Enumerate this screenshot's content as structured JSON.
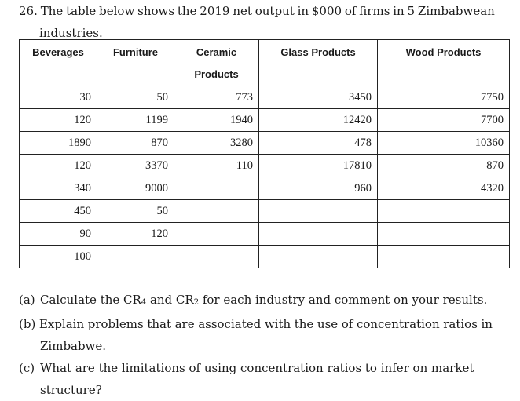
{
  "question": {
    "number": "26.",
    "intro_line1_words": [
      "The",
      "table",
      "below",
      "shows",
      "the",
      "2019",
      "net",
      "output",
      "in",
      "$000",
      "of",
      "firms",
      "in",
      "5",
      "Zimbabwean"
    ],
    "intro_line2": "industries."
  },
  "table": {
    "headers": [
      "Beverages",
      "Furniture",
      "Ceramic Products",
      "Glass Products",
      "Wood Products"
    ],
    "ceramic_line1": "Ceramic",
    "ceramic_line2": "Products",
    "rows": [
      [
        "30",
        "50",
        "773",
        "3450",
        "7750"
      ],
      [
        "120",
        "1199",
        "1940",
        "12420",
        "7700"
      ],
      [
        "1890",
        "870",
        "3280",
        "478",
        "10360"
      ],
      [
        "120",
        "3370",
        "110",
        "17810",
        "870"
      ],
      [
        "340",
        "9000",
        "",
        "960",
        "4320"
      ],
      [
        "450",
        "50",
        "",
        "",
        ""
      ],
      [
        "90",
        "120",
        "",
        "",
        ""
      ],
      [
        "100",
        "",
        "",
        "",
        ""
      ]
    ]
  },
  "tasks": {
    "a_tag": "(a)",
    "a_pre": "Calculate the CR",
    "a_sub1": "4",
    "a_mid": " and CR",
    "a_sub2": "2",
    "a_post": " for each industry and comment on your results.",
    "b_tag": "(b)",
    "b_line1_words": [
      "Explain",
      "problems",
      "that",
      "are",
      "associated",
      "with",
      "the",
      "use",
      "of",
      "concentration",
      "ratios",
      "in"
    ],
    "b_line2": "Zimbabwe.",
    "c_tag": "(c)",
    "c_text": "What are the limitations of using concentration ratios to infer on market structure?"
  }
}
